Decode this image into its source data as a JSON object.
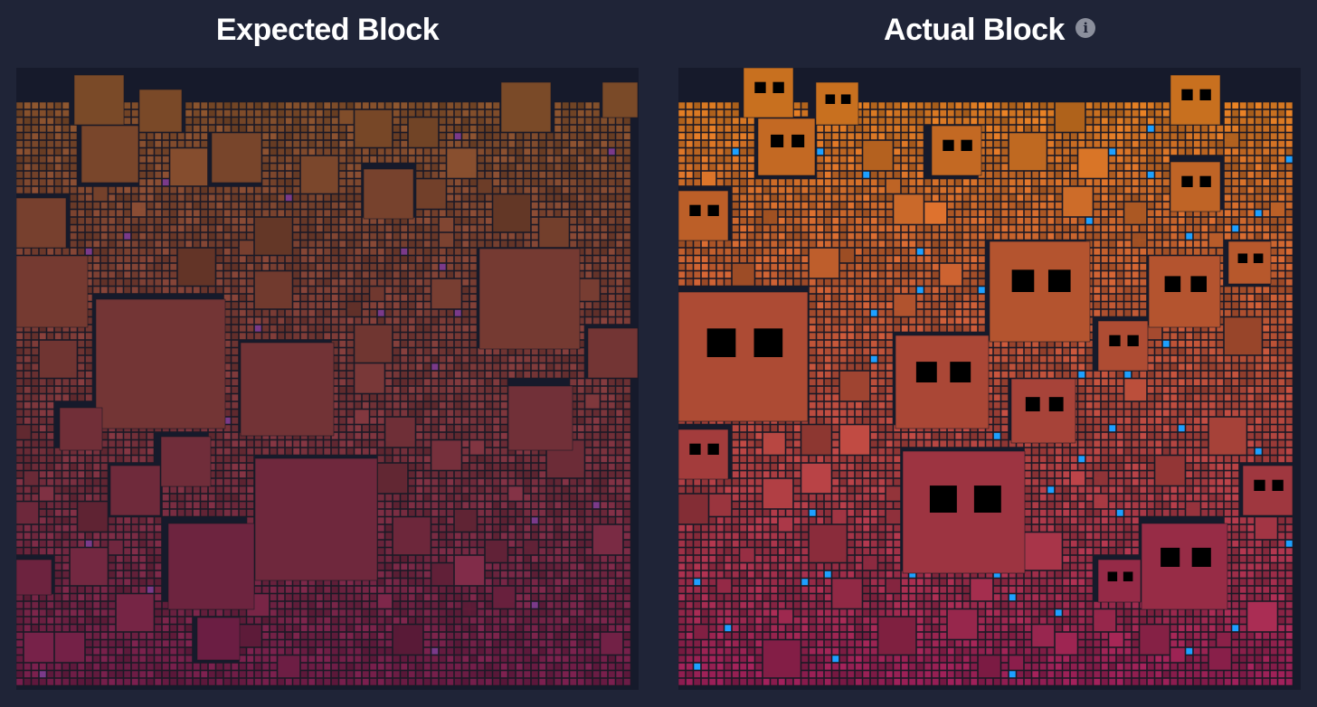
{
  "panels": {
    "expected": {
      "title": "Expected Block"
    },
    "actual": {
      "title": "Actual Block",
      "info_icon": "info-icon",
      "info_glyph": "i"
    }
  },
  "colors": {
    "page_bg": "#1f2437",
    "panel_bg": "#161a2b",
    "tile_border": "#1f1a23",
    "tx_top_expected": "#7a4a28",
    "tx_bottom_expected": "#6a1a45",
    "tx_top_actual": "#c8701f",
    "tx_bottom_actual": "#8a1a50",
    "accent_blue": "#1ea0ff",
    "accent_purple": "#7a3a8a",
    "face_eye": "#000000"
  }
}
